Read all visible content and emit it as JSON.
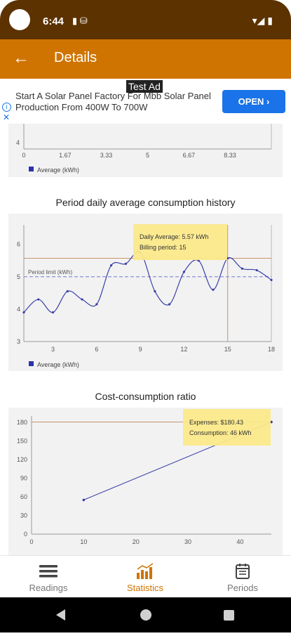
{
  "status_bar": {
    "time": "6:44"
  },
  "app_bar": {
    "title": "Details"
  },
  "ad": {
    "test_label": "Test Ad",
    "text": "Start A Solar Panel Factory For Mbb Solar Panel Production From 400W To 700W",
    "open_label": "OPEN"
  },
  "charts": {
    "top": {
      "x_ticks": [
        "0",
        "1.67",
        "3.33",
        "5",
        "6.67",
        "8.33"
      ],
      "y_tick_visible": "4",
      "legend": "Average (kWh)"
    },
    "history": {
      "title": "Period daily average consumption history",
      "tooltip_line1": "Daily Average: 5.57 kWh",
      "tooltip_line2": "Billing period: 15",
      "limit_label": "Period limit (kWh)",
      "legend": "Average (kWh)",
      "x_ticks": [
        "3",
        "6",
        "9",
        "12",
        "15",
        "18"
      ],
      "y_ticks": [
        "6",
        "5",
        "4",
        "3"
      ]
    },
    "cost": {
      "title": "Cost-consumption ratio",
      "tooltip_line1": "Expenses: $180.43",
      "tooltip_line2": "Consumption: 46 kWh",
      "x_ticks": [
        "0",
        "10",
        "20",
        "30",
        "40"
      ],
      "y_ticks": [
        "180",
        "150",
        "120",
        "90",
        "60",
        "30",
        "0"
      ]
    }
  },
  "chart_data": [
    {
      "type": "line",
      "series": [
        {
          "name": "Average (kWh)",
          "values": []
        }
      ],
      "xlim": [
        0,
        10
      ],
      "x_ticks": [
        0,
        1.67,
        3.33,
        5,
        6.67,
        8.33
      ]
    },
    {
      "type": "line",
      "title": "Period daily average consumption history",
      "x": [
        1,
        2,
        3,
        4,
        5,
        6,
        7,
        8,
        9,
        10,
        11,
        12,
        13,
        14,
        15,
        16,
        17,
        18
      ],
      "series": [
        {
          "name": "Average (kWh)",
          "values": [
            3.9,
            4.3,
            3.9,
            4.55,
            4.3,
            4.15,
            5.35,
            5.4,
            5.75,
            4.55,
            4.15,
            5.15,
            5.5,
            4.6,
            5.57,
            5.25,
            5.2,
            4.9
          ]
        },
        {
          "name": "Period limit (kWh)",
          "values": [
            5.0,
            5.0,
            5.0,
            5.0,
            5.0,
            5.0,
            5.0,
            5.0,
            5.0,
            5.0,
            5.0,
            5.0,
            5.0,
            5.0,
            5.0,
            5.0,
            5.0,
            5.0
          ]
        }
      ],
      "ylim": [
        3,
        6.6
      ],
      "highlight": {
        "x": 15,
        "y": 5.57
      }
    },
    {
      "type": "scatter",
      "title": "Cost-consumption ratio",
      "series": [
        {
          "name": "",
          "points": [
            [
              10,
              55
            ],
            [
              46,
              180.43
            ]
          ]
        }
      ],
      "xlim": [
        0,
        46
      ],
      "ylim": [
        0,
        190
      ],
      "highlight": {
        "x": 46,
        "y": 180.43
      }
    }
  ],
  "bottom_nav": {
    "items": [
      {
        "label": "Readings",
        "icon": "menu-icon"
      },
      {
        "label": "Statistics",
        "icon": "bar-chart-icon"
      },
      {
        "label": "Periods",
        "icon": "calendar-icon"
      }
    ]
  },
  "colors": {
    "status_bar": "#5c3200",
    "app_bar": "#cf7400",
    "series_line": "#3a3fa8",
    "limit_line": "#8a90d8",
    "tooltip": "#fbe98a",
    "accent": "#cf7400"
  }
}
